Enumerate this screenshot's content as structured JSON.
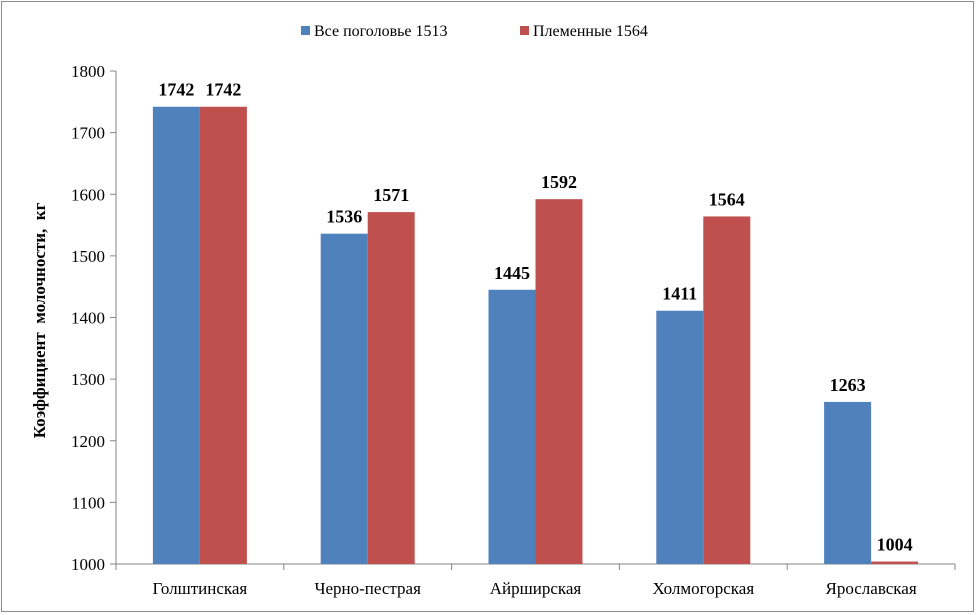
{
  "chart_data": {
    "type": "bar",
    "categories": [
      "Голштинская",
      "Черно-пестрая",
      "Айрширская",
      "Холмогорская",
      "Ярославская"
    ],
    "series": [
      {
        "name": "Все поголовье 1513",
        "values": [
          1742,
          1536,
          1445,
          1411,
          1263
        ],
        "color": "#4f81bd"
      },
      {
        "name": "Племенные 1564",
        "values": [
          1742,
          1571,
          1592,
          1564,
          1004
        ],
        "color": "#c0504d"
      }
    ],
    "ylabel": "Коэффициент  молочности,  кг",
    "ylim": [
      1000,
      1800
    ],
    "yticks": [
      1000,
      1100,
      1200,
      1300,
      1400,
      1500,
      1600,
      1700,
      1800
    ],
    "grid": false,
    "legend_position": "top"
  }
}
